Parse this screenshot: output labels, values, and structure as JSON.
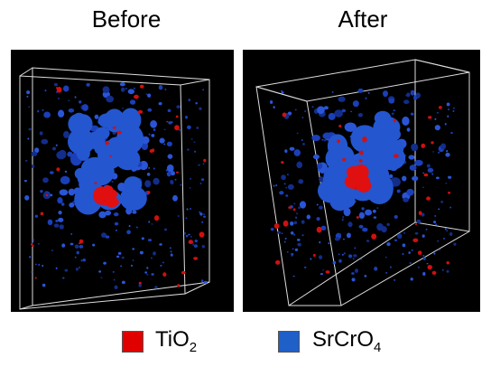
{
  "panels": [
    {
      "title": "Before"
    },
    {
      "title": "After"
    }
  ],
  "legend": [
    {
      "text": "TiO",
      "sub": "2"
    },
    {
      "text": "SrCrO",
      "sub": "4"
    }
  ]
}
